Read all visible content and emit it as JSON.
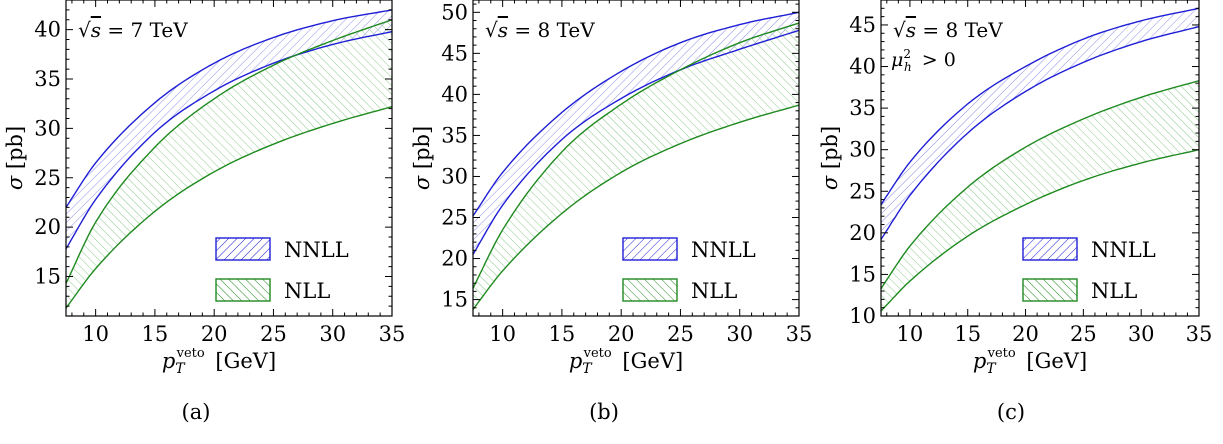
{
  "figure": {
    "panels": [
      "(a)",
      "(b)",
      "(c)"
    ]
  },
  "colors": {
    "nnll": "#1f1fd6",
    "nll": "#1f8a1f",
    "nnll_fill": "#8f8fea",
    "nll_fill": "#8fc98f"
  },
  "chart_data": [
    {
      "type": "area",
      "panel_label": "(a)",
      "annotations": [
        "√s = 7 TeV"
      ],
      "xlabel": "p_T^veto [GeV]",
      "ylabel": "σ [pb]",
      "xlim": [
        7.5,
        35
      ],
      "ylim": [
        11,
        43
      ],
      "xticks": [
        10,
        15,
        20,
        25,
        30,
        35
      ],
      "yticks": [
        15,
        20,
        25,
        30,
        35,
        40
      ],
      "legend": {
        "position": "bottom-right",
        "entries": [
          "NNLL",
          "NLL"
        ]
      },
      "x": [
        7.5,
        10,
        15,
        20,
        25,
        30,
        35
      ],
      "series": [
        {
          "name": "NNLL",
          "lower": [
            17.8,
            22.8,
            29.6,
            33.8,
            36.6,
            38.5,
            39.8
          ],
          "upper": [
            22.0,
            26.5,
            32.6,
            36.6,
            39.2,
            40.9,
            42.0
          ]
        },
        {
          "name": "NLL",
          "lower": [
            11.8,
            15.8,
            21.6,
            25.6,
            28.4,
            30.5,
            32.2
          ],
          "upper": [
            14.3,
            20.5,
            28.1,
            33.0,
            36.4,
            38.9,
            41.0
          ]
        }
      ]
    },
    {
      "type": "area",
      "panel_label": "(b)",
      "annotations": [
        "√s = 8 TeV"
      ],
      "xlabel": "p_T^veto [GeV]",
      "ylabel": "σ [pb]",
      "xlim": [
        7.5,
        35
      ],
      "ylim": [
        13,
        51.5
      ],
      "xticks": [
        10,
        15,
        20,
        25,
        30,
        35
      ],
      "yticks": [
        15,
        20,
        25,
        30,
        35,
        40,
        45,
        50
      ],
      "legend": {
        "position": "bottom-right",
        "entries": [
          "NNLL",
          "NLL"
        ]
      },
      "x": [
        7.5,
        10,
        15,
        20,
        25,
        30,
        35
      ],
      "series": [
        {
          "name": "NNLL",
          "lower": [
            20.5,
            26.5,
            34.5,
            39.5,
            43.0,
            45.5,
            47.8
          ],
          "upper": [
            25.2,
            30.5,
            37.8,
            42.8,
            46.3,
            48.5,
            50.0
          ]
        },
        {
          "name": "NLL",
          "lower": [
            13.8,
            18.5,
            25.5,
            30.5,
            34.0,
            36.6,
            38.7
          ],
          "upper": [
            16.4,
            23.5,
            33.0,
            38.8,
            43.0,
            46.3,
            48.7
          ]
        }
      ]
    },
    {
      "type": "area",
      "panel_label": "(c)",
      "annotations": [
        "√s = 8 TeV",
        "μ_h^2 > 0"
      ],
      "xlabel": "p_T^veto [GeV]",
      "ylabel": "σ [pb]",
      "xlim": [
        7.5,
        35
      ],
      "ylim": [
        10,
        48
      ],
      "xticks": [
        10,
        15,
        20,
        25,
        30,
        35
      ],
      "yticks": [
        10,
        15,
        20,
        25,
        30,
        35,
        40,
        45
      ],
      "legend": {
        "position": "bottom-right",
        "entries": [
          "NNLL",
          "NLL"
        ]
      },
      "x": [
        7.5,
        10,
        15,
        20,
        25,
        30,
        35
      ],
      "series": [
        {
          "name": "NNLL",
          "lower": [
            19.2,
            24.5,
            32.0,
            37.0,
            40.5,
            43.0,
            44.8
          ],
          "upper": [
            23.4,
            28.5,
            35.5,
            40.0,
            43.3,
            45.5,
            47.0
          ]
        },
        {
          "name": "NLL",
          "lower": [
            10.6,
            14.2,
            19.6,
            23.4,
            26.3,
            28.4,
            30.0
          ],
          "upper": [
            13.3,
            18.4,
            25.5,
            30.3,
            33.7,
            36.3,
            38.3
          ]
        }
      ]
    }
  ]
}
